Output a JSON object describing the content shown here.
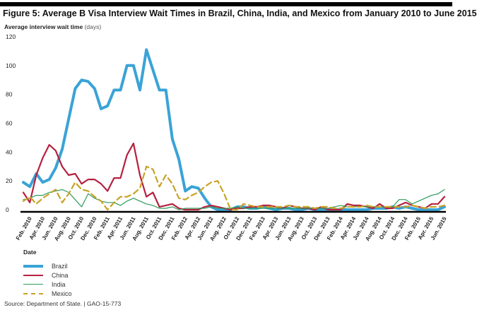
{
  "chart_data": {
    "type": "line",
    "title": "Figure 5: Average B Visa Interview Wait Times in Brazil, China, India, and Mexico from January 2010 to June 2015",
    "ylabel": "Average interview wait time",
    "ylabel_unit": "(days)",
    "xlabel": "Date",
    "ylim": [
      0,
      120
    ],
    "yticks": [
      0,
      20,
      40,
      60,
      80,
      100,
      120
    ],
    "x_start": "Jan. 2010",
    "x_months": 66,
    "xticks": [
      "Feb. 2010",
      "Apr. 2010",
      "Jun. 2010",
      "Aug. 2010",
      "Oct. 2010",
      "Dec. 2010",
      "Feb. 2011",
      "Apr. 2011",
      "Jun. 2011",
      "Aug. 2011",
      "Oct. 2011",
      "Dec. 2011",
      "Feb. 2012",
      "Apr. 2012",
      "Jun. 2012",
      "Aug. 2012",
      "Oct. 2012",
      "Dec. 2012",
      "Feb. 2013",
      "Apr. 2013",
      "Jun. 2013",
      "Aug. 2013",
      "Oct. 2013",
      "Dec. 2013",
      "Feb. 2014",
      "Apr. 2014",
      "Jun. 2014",
      "Aug. 2014",
      "Oct. 2014",
      "Dec. 2014",
      "Feb. 2015",
      "Apr. 2015",
      "Jun. 2015"
    ],
    "grid": false,
    "legend_position": "bottom-left",
    "series": [
      {
        "name": "Brazil",
        "color": "#3aa3d6",
        "dashed": false,
        "width": 4,
        "values": [
          19,
          16,
          25,
          19,
          21,
          29,
          42,
          63,
          84,
          90,
          89,
          84,
          70,
          72,
          83,
          83,
          100,
          100,
          83,
          111,
          97,
          83,
          83,
          49,
          35,
          13,
          16,
          15,
          8,
          2,
          0,
          0,
          0,
          2,
          2,
          1,
          1,
          2,
          1,
          0,
          1,
          1,
          0,
          0,
          1,
          0,
          0,
          0,
          0,
          0,
          0,
          0,
          0,
          0,
          1,
          1,
          1,
          2,
          1,
          2,
          1,
          0,
          0,
          0,
          0,
          2
        ]
      },
      {
        "name": "China",
        "color": "#b5213f",
        "dashed": false,
        "width": 2.2,
        "values": [
          12,
          5,
          24,
          36,
          45,
          41,
          30,
          24,
          25,
          18,
          21,
          21,
          18,
          13,
          22,
          22,
          38,
          46,
          24,
          9,
          12,
          2,
          3,
          4,
          1,
          0,
          0,
          0,
          2,
          3,
          2,
          1,
          0,
          1,
          1,
          2,
          2,
          3,
          3,
          2,
          1,
          3,
          2,
          1,
          1,
          0,
          2,
          0,
          0,
          0,
          4,
          3,
          3,
          2,
          1,
          4,
          1,
          1,
          3,
          5,
          3,
          2,
          1,
          4,
          4,
          9
        ]
      },
      {
        "name": "India",
        "color": "#2e9a5a",
        "dashed": false,
        "width": 1.2,
        "values": [
          7,
          8,
          10,
          10,
          12,
          13,
          14,
          12,
          7,
          2,
          11,
          8,
          6,
          5,
          5,
          3,
          6,
          8,
          6,
          4,
          3,
          1,
          1,
          2,
          0,
          1,
          1,
          1,
          1,
          2,
          1,
          1,
          1,
          2,
          1,
          1,
          1,
          1,
          1,
          1,
          1,
          1,
          1,
          1,
          1,
          1,
          1,
          1,
          2,
          3,
          2,
          2,
          2,
          2,
          2,
          2,
          2,
          2,
          7,
          7,
          4,
          6,
          8,
          10,
          11,
          14
        ]
      },
      {
        "name": "Mexico",
        "color": "#c9a227",
        "dashed": true,
        "width": 2.2,
        "values": [
          6,
          9,
          4,
          8,
          11,
          14,
          5,
          11,
          19,
          14,
          13,
          9,
          6,
          0,
          5,
          9,
          9,
          11,
          15,
          30,
          28,
          16,
          24,
          18,
          8,
          7,
          10,
          12,
          16,
          19,
          20,
          11,
          0,
          0,
          4,
          3,
          2,
          2,
          2,
          2,
          2,
          3,
          2,
          2,
          2,
          1,
          2,
          2,
          1,
          1,
          2,
          2,
          2,
          3,
          2,
          2,
          2,
          2,
          2,
          2,
          3,
          2,
          1,
          2,
          2,
          3
        ]
      }
    ]
  },
  "source": "Source: Department of State.  |  GAO-15-773"
}
